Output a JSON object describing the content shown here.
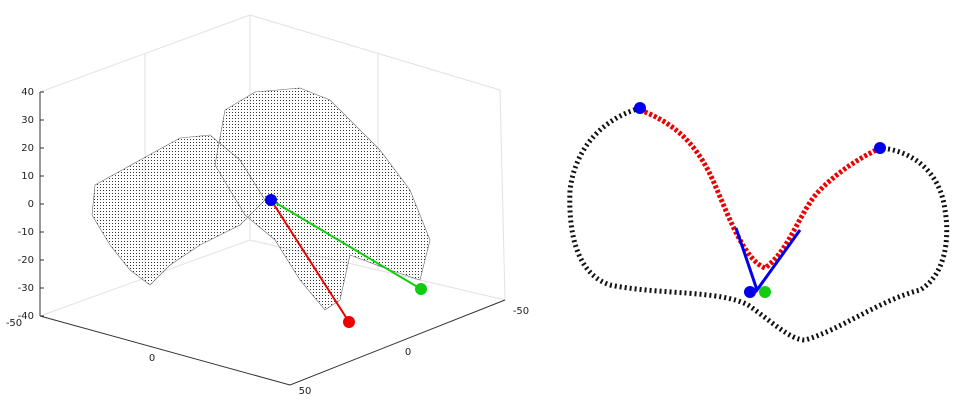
{
  "left_plot": {
    "z_ticks": [
      40,
      30,
      20,
      10,
      0,
      -10,
      -20,
      -30,
      -40
    ],
    "left_floor_ticks": [
      -50,
      0,
      50
    ],
    "right_floor_ticks": [
      -50,
      0
    ]
  }
}
